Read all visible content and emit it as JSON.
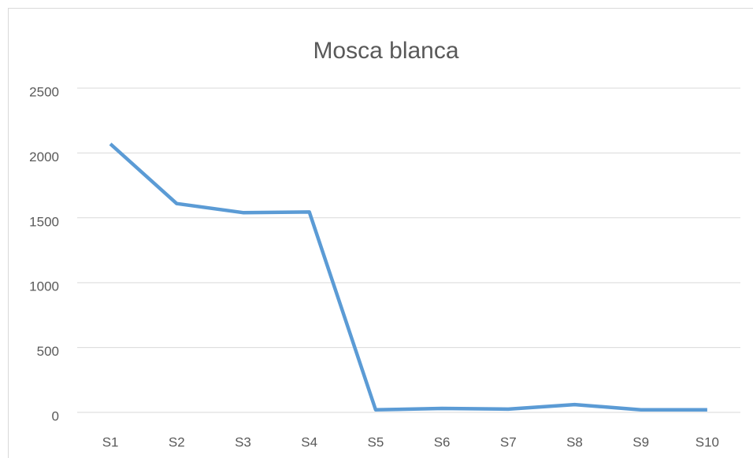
{
  "chart_data": {
    "type": "line",
    "title": "Mosca blanca",
    "categories": [
      "S1",
      "S2",
      "S3",
      "S4",
      "S5",
      "S6",
      "S7",
      "S8",
      "S9",
      "S10"
    ],
    "series": [
      {
        "color": "#5b9bd5",
        "values": [
          2070,
          1610,
          1540,
          1545,
          20,
          30,
          25,
          60,
          20,
          20
        ]
      }
    ],
    "ylim": [
      0,
      2500
    ],
    "yticks": [
      0,
      500,
      1000,
      1500,
      2000,
      2500
    ],
    "grid": true
  }
}
